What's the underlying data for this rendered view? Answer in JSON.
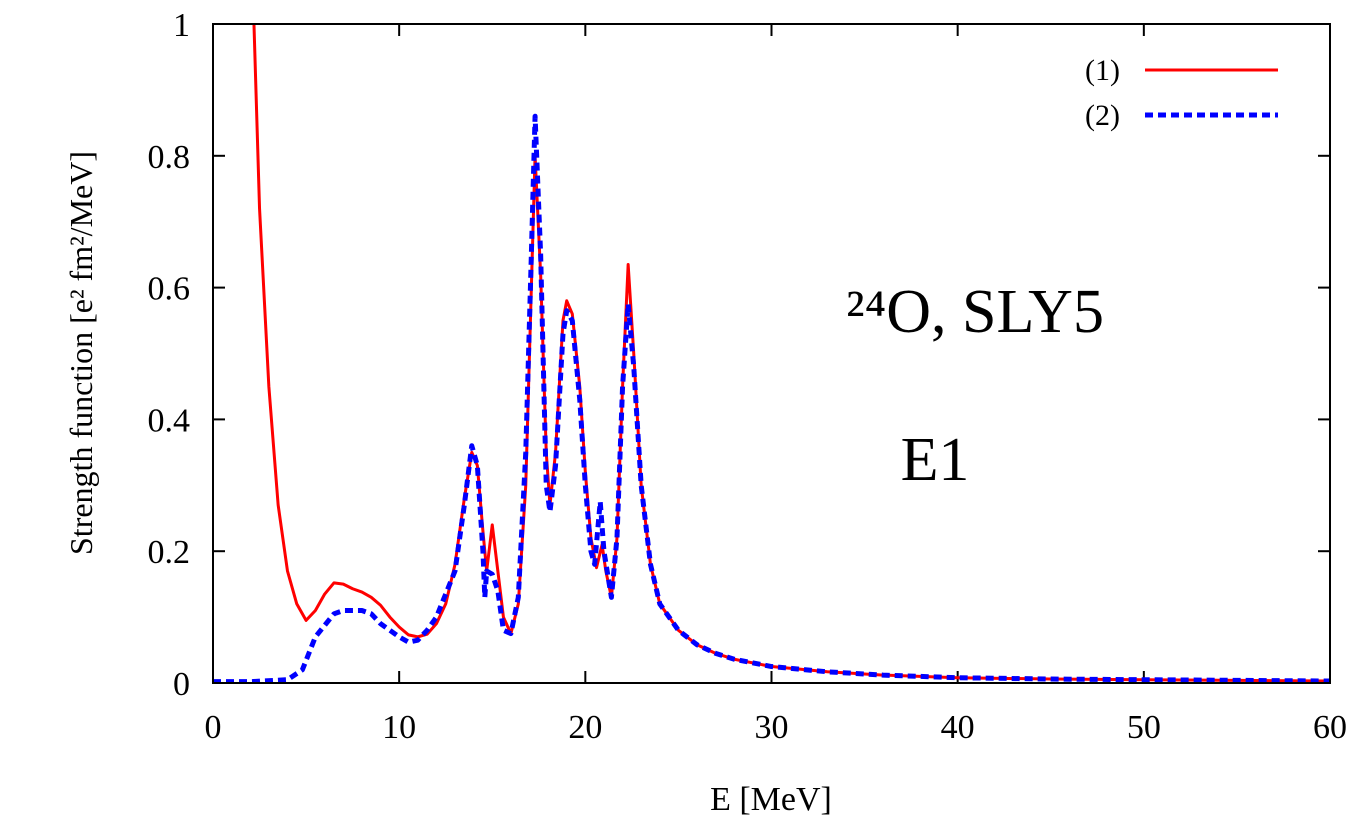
{
  "chart_data": {
    "type": "line",
    "xlabel": "E [MeV]",
    "ylabel": "Strength function [e² fm²/MeV]",
    "annotations": [
      "²⁴O, SLY5",
      "E1"
    ],
    "xlim": [
      0,
      60
    ],
    "xticks": [
      0,
      10,
      20,
      30,
      40,
      50,
      60
    ],
    "ylim": [
      0,
      1
    ],
    "yticks": [
      0,
      0.2,
      0.4,
      0.6,
      0.8,
      1
    ],
    "legend": "top-right",
    "series": [
      {
        "name": "(1)",
        "color": "#ff0000",
        "dash": false,
        "x": [
          2.2,
          2.5,
          3,
          3.5,
          4,
          4.5,
          5,
          5.5,
          6,
          6.5,
          7,
          7.5,
          8,
          8.5,
          9,
          9.5,
          10,
          10.5,
          11,
          11.5,
          12,
          12.5,
          13,
          13.5,
          13.9,
          14.2,
          14.5,
          14.7,
          15,
          15.3,
          15.6,
          16,
          16.4,
          16.8,
          17.1,
          17.3,
          17.6,
          17.9,
          18.1,
          18.4,
          18.8,
          19,
          19.3,
          19.7,
          20,
          20.3,
          20.6,
          20.9,
          21.1,
          21.4,
          21.7,
          22,
          22.3,
          22.6,
          23,
          23.5,
          24,
          25,
          26,
          27,
          28,
          30,
          33,
          36,
          40,
          45,
          50,
          55,
          60
        ],
        "values": [
          1.0,
          0.72,
          0.45,
          0.27,
          0.17,
          0.12,
          0.095,
          0.11,
          0.135,
          0.152,
          0.15,
          0.143,
          0.138,
          0.13,
          0.118,
          0.1,
          0.085,
          0.073,
          0.07,
          0.074,
          0.09,
          0.12,
          0.18,
          0.28,
          0.35,
          0.33,
          0.23,
          0.17,
          0.24,
          0.17,
          0.1,
          0.075,
          0.12,
          0.3,
          0.6,
          0.8,
          0.62,
          0.35,
          0.27,
          0.35,
          0.55,
          0.58,
          0.56,
          0.45,
          0.32,
          0.22,
          0.175,
          0.21,
          0.17,
          0.13,
          0.22,
          0.45,
          0.635,
          0.5,
          0.3,
          0.18,
          0.12,
          0.08,
          0.058,
          0.045,
          0.036,
          0.025,
          0.017,
          0.012,
          0.008,
          0.006,
          0.005,
          0.004,
          0.003
        ]
      },
      {
        "name": "(2)",
        "color": "#0000ff",
        "dash": true,
        "x": [
          0,
          2,
          4,
          4.8,
          5.5,
          6.5,
          7,
          8,
          8.5,
          9,
          9.5,
          10,
          10.5,
          11,
          11.5,
          12,
          12.5,
          13,
          13.5,
          13.9,
          14.2,
          14.5,
          14.6,
          14.7,
          15,
          15.3,
          15.6,
          16,
          16.4,
          16.8,
          17.1,
          17.3,
          17.6,
          17.9,
          18.1,
          18.4,
          18.8,
          19,
          19.3,
          19.7,
          20,
          20.3,
          20.5,
          20.8,
          21,
          21.4,
          21.7,
          22,
          22.3,
          22.6,
          23,
          23.5,
          24,
          25,
          26,
          27,
          28,
          30,
          33,
          36,
          40,
          45,
          50,
          55,
          60
        ],
        "values": [
          0.002,
          0.002,
          0.005,
          0.02,
          0.07,
          0.105,
          0.11,
          0.11,
          0.105,
          0.09,
          0.08,
          0.07,
          0.062,
          0.065,
          0.08,
          0.1,
          0.135,
          0.17,
          0.27,
          0.36,
          0.33,
          0.2,
          0.13,
          0.17,
          0.165,
          0.14,
          0.08,
          0.075,
          0.13,
          0.35,
          0.65,
          0.86,
          0.65,
          0.3,
          0.26,
          0.33,
          0.53,
          0.565,
          0.55,
          0.43,
          0.3,
          0.2,
          0.18,
          0.275,
          0.2,
          0.13,
          0.22,
          0.45,
          0.575,
          0.48,
          0.3,
          0.18,
          0.12,
          0.08,
          0.058,
          0.045,
          0.036,
          0.025,
          0.017,
          0.012,
          0.008,
          0.006,
          0.005,
          0.004,
          0.003
        ]
      }
    ]
  }
}
